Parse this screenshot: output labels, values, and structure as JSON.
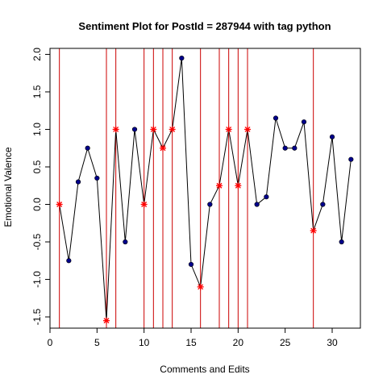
{
  "chart_data": {
    "type": "line",
    "title": "Sentiment Plot for PostId =  287944  with tag  python",
    "xlabel": "Comments and Edits",
    "ylabel": "Emotional Valence",
    "xlim": [
      0,
      33
    ],
    "ylim": [
      -1.65,
      2.08
    ],
    "xticks": [
      "0",
      "5",
      "10",
      "15",
      "20",
      "25",
      "30"
    ],
    "yticks": [
      "-1.5",
      "-1.0",
      "-0.5",
      "0.0",
      "0.5",
      "1.0",
      "1.5",
      "2.0"
    ],
    "grid": false,
    "series": [
      {
        "x": [
          1,
          2,
          3,
          4,
          5,
          6,
          7,
          8,
          9,
          10,
          11,
          12,
          13,
          14,
          15,
          16,
          17,
          18,
          19,
          20,
          21,
          22,
          23,
          24,
          25,
          26,
          27,
          28,
          29,
          30,
          31,
          32
        ],
        "y": [
          0,
          -0.75,
          0.3,
          0.75,
          0.35,
          -1.55,
          1.0,
          -0.5,
          1.0,
          0,
          1.0,
          0.75,
          1.0,
          1.95,
          -0.8,
          -1.1,
          0,
          0.25,
          1.0,
          0.25,
          1.0,
          0,
          0.1,
          1.15,
          0.75,
          0.75,
          1.1,
          -0.35,
          0,
          0.9,
          -0.5,
          0.6
        ]
      }
    ],
    "edit_points": [
      1,
      6,
      7,
      10,
      11,
      12,
      13,
      16,
      18,
      19,
      20,
      21,
      28
    ],
    "colors": {
      "line": "#000000",
      "comment_point": "#00008b",
      "edit_marker": "#ff0000",
      "edit_line": "#cc0000"
    }
  }
}
